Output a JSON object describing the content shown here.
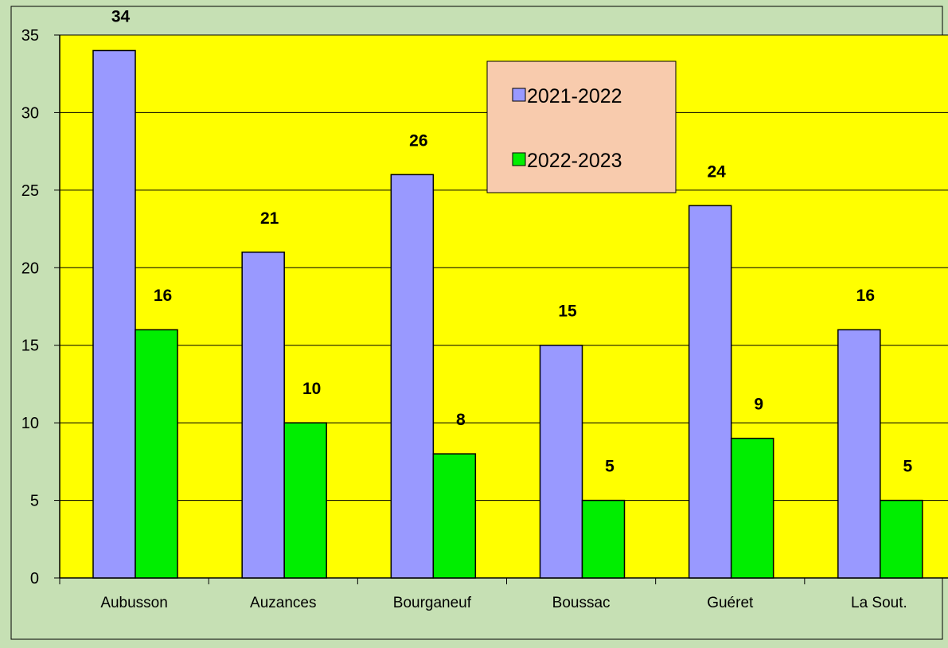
{
  "chart_data": {
    "type": "bar",
    "categories": [
      "Aubusson",
      "Auzances",
      "Bourganeuf",
      "Boussac",
      "Guéret",
      "La Sout."
    ],
    "series": [
      {
        "name": "2021-2022",
        "values": [
          34,
          21,
          26,
          15,
          24,
          16
        ]
      },
      {
        "name": "2022-2023",
        "values": [
          16,
          10,
          8,
          5,
          9,
          5
        ]
      }
    ],
    "ylim": [
      0,
      35
    ],
    "yticks": [
      0,
      5,
      10,
      15,
      20,
      25,
      30,
      35
    ],
    "grid": true,
    "legend": "top-center",
    "data_labels": true,
    "colors": {
      "series1": "#9999ff",
      "series2": "#00ee00",
      "plot_background": "#ffff00",
      "chart_background": "#c6e0b4",
      "legend_background": "#f8cbad",
      "gridline": "#000000"
    }
  }
}
